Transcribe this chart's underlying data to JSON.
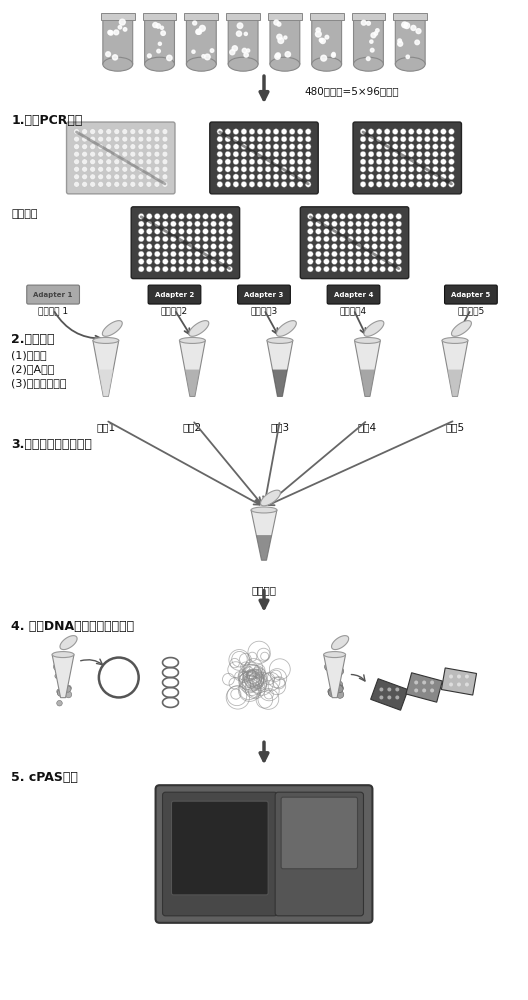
{
  "bg_color": "#ffffff",
  "fig_width": 5.28,
  "fig_height": 10.0,
  "dpi": 100,
  "top_label": "480个样品=5×96个样品",
  "step1_label": "1.多重PCR反应",
  "sample_mix_label": "样品混合",
  "step2_label": "2.文库制备",
  "step2_sub1": "(1)磷酸化",
  "step2_sub2": "(2)加A碱基",
  "step2_sub3": "(3)测序接头连接",
  "step3_label": "3.文库混合及环化反应",
  "step4_label": "4. 制备DNA纳米球及芯片加载",
  "step5_label": "5. cPAS测库",
  "seq_sample_label": "测序样品",
  "library_labels": [
    "文库1",
    "文库2",
    "文库3",
    "文库4",
    "文库5"
  ],
  "adapter_labels": [
    "Adapter 1",
    "Adapter 2",
    "Adapter 3",
    "Adapter 4",
    "Adapter 5"
  ],
  "tag_labels": [
    "标签接头 1",
    "标签接兗2",
    "标签接兗3",
    "标签接兗4",
    "标签接兗5"
  ],
  "text_color": "#111111"
}
